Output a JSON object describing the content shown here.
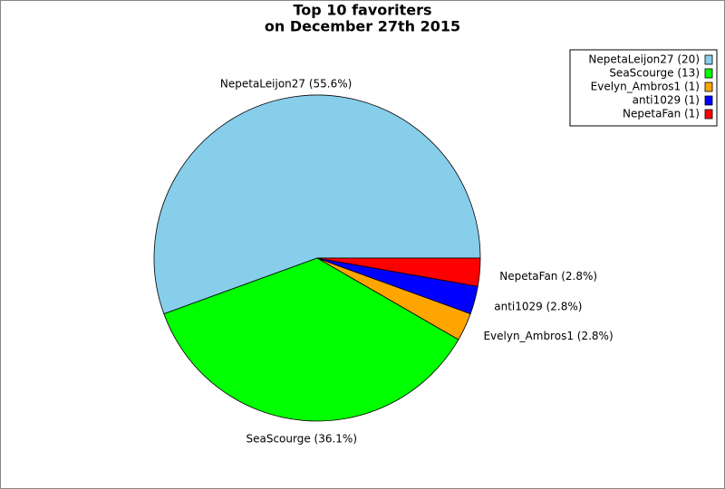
{
  "chart_data": {
    "type": "pie",
    "title": "Top 10 favoriters",
    "subtitle": "on December 27th 2015",
    "categories": [
      "NepetaLeijon27",
      "SeaScourge",
      "Evelyn_Ambros1",
      "anti1029",
      "NepetaFan"
    ],
    "values": [
      20,
      13,
      1,
      1,
      1
    ],
    "colors": [
      "#87ceeb",
      "#00ff00",
      "#ffa500",
      "#0000ff",
      "#ff0000"
    ],
    "slice_labels": [
      "NepetaLeijon27 (55.6%)",
      "SeaScourge (36.1%)",
      "Evelyn_Ambros1 (2.8%)",
      "anti1029 (2.8%)",
      "NepetaFan (2.8%)"
    ],
    "legend_labels": [
      "NepetaLeijon27 (20)",
      "SeaScourge (13)",
      "Evelyn_Ambros1 (1)",
      "anti1029 (1)",
      "NepetaFan (1)"
    ],
    "legend": "top-right"
  }
}
